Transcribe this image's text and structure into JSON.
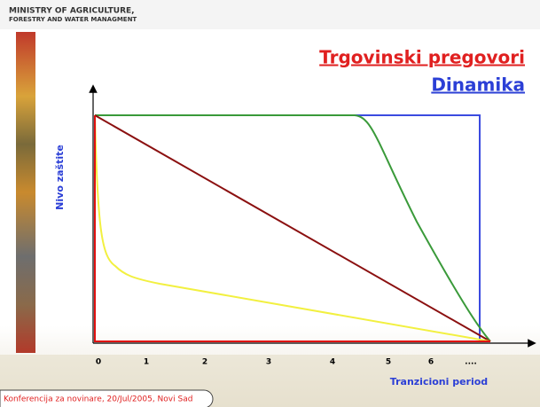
{
  "header": {
    "line1": "MINISTRY OF AGRICULTURE,",
    "line2": "FORESTRY AND WATER MANAGMENT"
  },
  "title": "Trgovinski pregovori",
  "subtitle": "Dinamika",
  "y_axis_label": "Nivo zaštite",
  "x_axis_label": "Tranzicioni period",
  "x_tick_labels": [
    "0",
    "1",
    "2",
    "3",
    "4",
    "5",
    "6",
    "...."
  ],
  "footer": "Konferencija za novinare, 20/Jul/2005, Novi Sad"
}
